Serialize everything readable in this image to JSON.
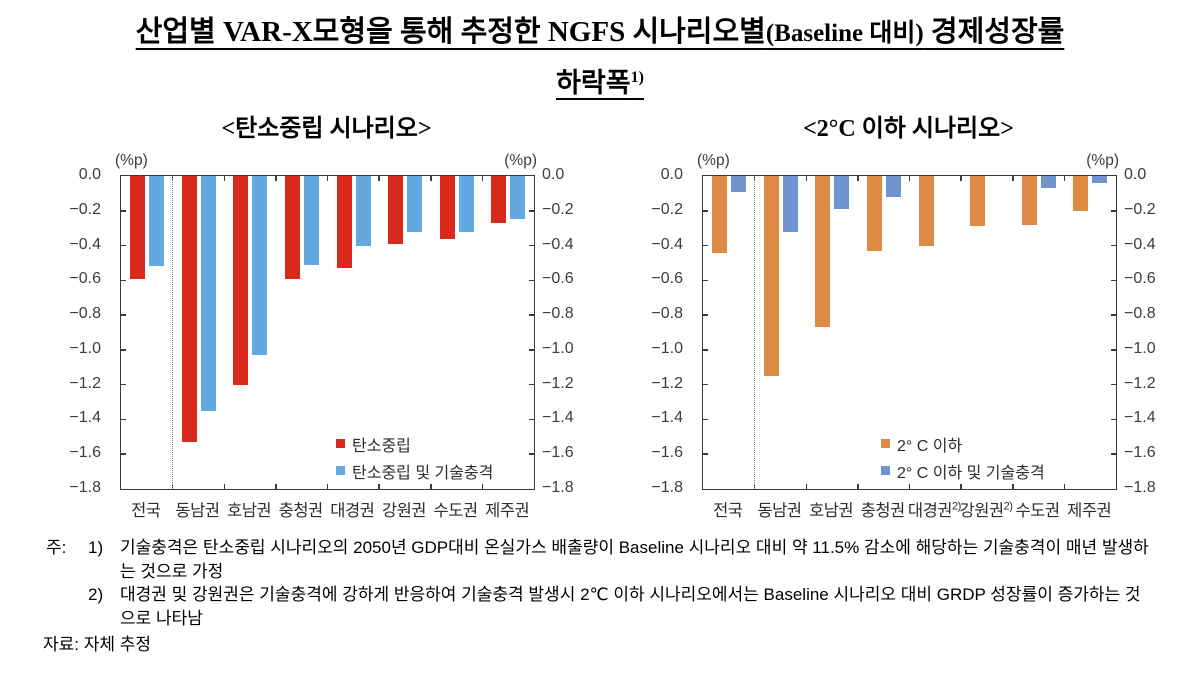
{
  "figure": {
    "title_part1": "산업별 VAR-X모형을 통해 추정한 NGFS 시나리오별",
    "title_paren": "(Baseline 대비)",
    "title_part2": " 경제성장률",
    "title_line2": "하락폭",
    "title_line2_sup": "1)"
  },
  "chart_data": [
    {
      "type": "bar",
      "title": "<탄소중립 시나리오>",
      "unit_label": "(%p)",
      "ylabel": "(%p)",
      "ylim": [
        0,
        -1.8
      ],
      "y_ticks": [
        "0.0",
        "−0.2",
        "−0.4",
        "−0.6",
        "−0.8",
        "−1.0",
        "−1.2",
        "−1.4",
        "−1.6",
        "−1.8"
      ],
      "grid": false,
      "legend_position": "inside-lower-right",
      "separator_after_category": "전국",
      "categories": [
        "전국",
        "동남권",
        "호남권",
        "충청권",
        "대경권",
        "강원권",
        "수도권",
        "제주권"
      ],
      "category_sups": [
        "",
        "",
        "",
        "",
        "",
        "",
        "",
        ""
      ],
      "series": [
        {
          "name": "탄소중립",
          "color": "#d8291c",
          "values": [
            -0.59,
            -1.53,
            -1.2,
            -0.59,
            -0.53,
            -0.39,
            -0.36,
            -0.27
          ]
        },
        {
          "name": "탄소중립 및 기술충격",
          "color": "#61a9e0",
          "values": [
            -0.52,
            -1.35,
            -1.03,
            -0.51,
            -0.4,
            -0.32,
            -0.32,
            -0.25
          ]
        }
      ]
    },
    {
      "type": "bar",
      "title": "<2°C 이하 시나리오>",
      "unit_label": "(%p)",
      "ylabel": "(%p)",
      "ylim": [
        0,
        -1.8
      ],
      "y_ticks": [
        "0.0",
        "−0.2",
        "−0.4",
        "−0.6",
        "−0.8",
        "−1.0",
        "−1.2",
        "−1.4",
        "−1.6",
        "−1.8"
      ],
      "grid": false,
      "legend_position": "inside-lower-right",
      "separator_after_category": "전국",
      "categories": [
        "전국",
        "동남권",
        "호남권",
        "충청권",
        "대경권",
        "강원권",
        "수도권",
        "제주권"
      ],
      "category_sups": [
        "",
        "",
        "",
        "",
        "2)",
        "2)",
        "",
        ""
      ],
      "series": [
        {
          "name": "2° C 이하",
          "color": "#dc8a44",
          "values": [
            -0.44,
            -1.15,
            -0.87,
            -0.43,
            -0.4,
            -0.29,
            -0.28,
            -0.2
          ]
        },
        {
          "name": "2° C 이하 및 기술충격",
          "color": "#7094ce",
          "values": [
            -0.09,
            -0.32,
            -0.19,
            -0.12,
            null,
            null,
            -0.07,
            -0.04
          ]
        }
      ]
    }
  ],
  "footnotes": {
    "label": "주:",
    "items": [
      {
        "num": "1)",
        "text": "기술충격은 탄소중립 시나리오의 2050년 GDP대비 온실가스 배출량이 Baseline 시나리오 대비 약 11.5% 감소에 해당하는 기술충격이 매년 발생하는 것으로 가정"
      },
      {
        "num": "2)",
        "text": "대경권 및 강원권은 기술충격에 강하게 반응하여 기술충격 발생시 2℃ 이하 시나리오에서는 Baseline 시나리오 대비 GRDP 성장률이 증가하는 것으로 나타남"
      }
    ],
    "source": "자료: 자체 추정"
  }
}
